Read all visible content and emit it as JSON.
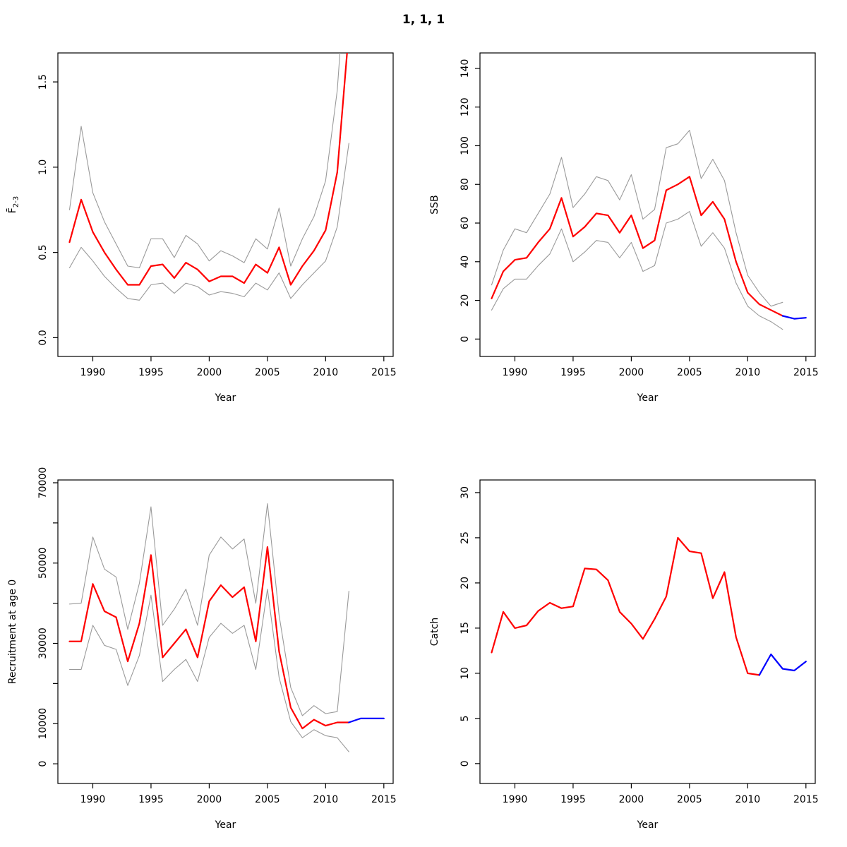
{
  "title": "1, 1, 1",
  "colors": {
    "estimate": "#ff0000",
    "forecast": "#0000ff",
    "band": "#9a9a9a",
    "axis": "#000000",
    "background": "#ffffff"
  },
  "chart_data": [
    {
      "type": "line",
      "name": "fbar",
      "title": "",
      "xlabel": "Year",
      "ylabel": "F̄",
      "ylabel_sub": "2-3",
      "xlim": [
        1987.0,
        2015.8
      ],
      "ylim": [
        -0.11,
        1.67
      ],
      "grid": false,
      "legend": "none",
      "xticks": [
        1990,
        1995,
        2000,
        2005,
        2010,
        2015
      ],
      "xtick_labels": [
        "1990",
        "1995",
        "2000",
        "2005",
        "2010",
        "2015"
      ],
      "yticks": [
        0,
        0.5,
        1.0,
        1.5
      ],
      "ytick_labels": [
        "0.0",
        "0.5",
        "1.0",
        "1.5"
      ],
      "series": [
        {
          "name": "upper-ci",
          "color_key": "band",
          "width": 1.1,
          "x": [
            1988,
            1989,
            1990,
            1991,
            1992,
            1993,
            1994,
            1995,
            1996,
            1997,
            1998,
            1999,
            2000,
            2001,
            2002,
            2003,
            2004,
            2005,
            2006,
            2007,
            2008,
            2009,
            2010,
            2011,
            2012
          ],
          "y": [
            0.75,
            1.24,
            0.85,
            0.68,
            0.55,
            0.42,
            0.41,
            0.58,
            0.58,
            0.47,
            0.6,
            0.55,
            0.45,
            0.51,
            0.48,
            0.44,
            0.58,
            0.52,
            0.76,
            0.42,
            0.58,
            0.71,
            0.92,
            1.45,
            2.4
          ]
        },
        {
          "name": "lower-ci",
          "color_key": "band",
          "width": 1.1,
          "x": [
            1988,
            1989,
            1990,
            1991,
            1992,
            1993,
            1994,
            1995,
            1996,
            1997,
            1998,
            1999,
            2000,
            2001,
            2002,
            2003,
            2004,
            2005,
            2006,
            2007,
            2008,
            2009,
            2010,
            2011,
            2012
          ],
          "y": [
            0.41,
            0.53,
            0.45,
            0.36,
            0.29,
            0.23,
            0.22,
            0.31,
            0.32,
            0.26,
            0.32,
            0.3,
            0.25,
            0.27,
            0.26,
            0.24,
            0.32,
            0.28,
            0.38,
            0.23,
            0.31,
            0.38,
            0.45,
            0.65,
            1.14
          ]
        },
        {
          "name": "estimate",
          "color_key": "estimate",
          "width": 2.2,
          "x": [
            1988,
            1989,
            1990,
            1991,
            1992,
            1993,
            1994,
            1995,
            1996,
            1997,
            1998,
            1999,
            2000,
            2001,
            2002,
            2003,
            2004,
            2005,
            2006,
            2007,
            2008,
            2009,
            2010,
            2011,
            2012
          ],
          "y": [
            0.56,
            0.81,
            0.62,
            0.5,
            0.4,
            0.31,
            0.31,
            0.42,
            0.43,
            0.35,
            0.44,
            0.4,
            0.33,
            0.36,
            0.36,
            0.32,
            0.43,
            0.38,
            0.53,
            0.31,
            0.42,
            0.51,
            0.63,
            0.97,
            1.8
          ]
        }
      ]
    },
    {
      "type": "line",
      "name": "ssb",
      "title": "",
      "xlabel": "Year",
      "ylabel": "SSB",
      "xlim": [
        1987.0,
        2015.8
      ],
      "ylim": [
        -9,
        148
      ],
      "grid": false,
      "legend": "none",
      "xticks": [
        1990,
        1995,
        2000,
        2005,
        2010,
        2015
      ],
      "xtick_labels": [
        "1990",
        "1995",
        "2000",
        "2005",
        "2010",
        "2015"
      ],
      "yticks": [
        0,
        20,
        40,
        60,
        80,
        100,
        120,
        140
      ],
      "ytick_labels": [
        "0",
        "20",
        "40",
        "60",
        "80",
        "100",
        "120",
        "140"
      ],
      "series": [
        {
          "name": "upper-ci",
          "color_key": "band",
          "width": 1.1,
          "x": [
            1988,
            1989,
            1990,
            1991,
            1992,
            1993,
            1994,
            1995,
            1996,
            1997,
            1998,
            1999,
            2000,
            2001,
            2002,
            2003,
            2004,
            2005,
            2006,
            2007,
            2008,
            2009,
            2010,
            2011,
            2012,
            2013
          ],
          "y": [
            28,
            46,
            57,
            55,
            65,
            75,
            94,
            68,
            75,
            84,
            82,
            72,
            85,
            62,
            67,
            99,
            101,
            108,
            83,
            93,
            82,
            55,
            33,
            24,
            17,
            19
          ]
        },
        {
          "name": "lower-ci",
          "color_key": "band",
          "width": 1.1,
          "x": [
            1988,
            1989,
            1990,
            1991,
            1992,
            1993,
            1994,
            1995,
            1996,
            1997,
            1998,
            1999,
            2000,
            2001,
            2002,
            2003,
            2004,
            2005,
            2006,
            2007,
            2008,
            2009,
            2010,
            2011,
            2012,
            2013
          ],
          "y": [
            15,
            26,
            31,
            31,
            38,
            44,
            57,
            40,
            45,
            51,
            50,
            42,
            50,
            35,
            38,
            60,
            62,
            66,
            48,
            55,
            47,
            29,
            17,
            12,
            9,
            5
          ]
        },
        {
          "name": "estimate",
          "color_key": "estimate",
          "width": 2.2,
          "x": [
            1988,
            1989,
            1990,
            1991,
            1992,
            1993,
            1994,
            1995,
            1996,
            1997,
            1998,
            1999,
            2000,
            2001,
            2002,
            2003,
            2004,
            2005,
            2006,
            2007,
            2008,
            2009,
            2010,
            2011,
            2012,
            2013
          ],
          "y": [
            21,
            35,
            41,
            42,
            50,
            57,
            73,
            53,
            58,
            65,
            64,
            55,
            64,
            47,
            51,
            77,
            80,
            84,
            64,
            71,
            62,
            40,
            24,
            18,
            15,
            12
          ]
        },
        {
          "name": "forecast",
          "color_key": "forecast",
          "width": 2.2,
          "x": [
            2013,
            2014,
            2015
          ],
          "y": [
            12,
            10.5,
            11
          ]
        }
      ]
    },
    {
      "type": "line",
      "name": "recruitment",
      "title": "",
      "xlabel": "Year",
      "ylabel": "Recruitment at age 0",
      "xlim": [
        1987.0,
        2015.8
      ],
      "ylim": [
        -4900,
        70700
      ],
      "grid": false,
      "legend": "none",
      "xticks": [
        1990,
        1995,
        2000,
        2005,
        2010,
        2015
      ],
      "xtick_labels": [
        "1990",
        "1995",
        "2000",
        "2005",
        "2010",
        "2015"
      ],
      "yticks": [
        0,
        10000,
        20000,
        30000,
        40000,
        50000,
        60000,
        70000
      ],
      "ytick_labels": [
        "0",
        "10000",
        "",
        "30000",
        "",
        "50000",
        "",
        "70000"
      ],
      "series": [
        {
          "name": "upper-ci",
          "color_key": "band",
          "width": 1.1,
          "x": [
            1988,
            1989,
            1990,
            1991,
            1992,
            1993,
            1994,
            1995,
            1996,
            1997,
            1998,
            1999,
            2000,
            2001,
            2002,
            2003,
            2004,
            2005,
            2006,
            2007,
            2008,
            2009,
            2010,
            2011,
            2012
          ],
          "y": [
            39800,
            40000,
            56500,
            48500,
            46500,
            33500,
            45000,
            64000,
            34500,
            38500,
            43500,
            34500,
            52000,
            56500,
            53500,
            56000,
            40000,
            64800,
            37000,
            19000,
            12000,
            14500,
            12500,
            13000,
            43000
          ]
        },
        {
          "name": "lower-ci",
          "color_key": "band",
          "width": 1.1,
          "x": [
            1988,
            1989,
            1990,
            1991,
            1992,
            1993,
            1994,
            1995,
            1996,
            1997,
            1998,
            1999,
            2000,
            2001,
            2002,
            2003,
            2004,
            2005,
            2006,
            2007,
            2008,
            2009,
            2010,
            2011,
            2012
          ],
          "y": [
            23500,
            23500,
            34500,
            29500,
            28500,
            19500,
            27000,
            42000,
            20500,
            23500,
            26000,
            20500,
            31500,
            35000,
            32500,
            34500,
            23500,
            43500,
            21500,
            10500,
            6500,
            8500,
            7000,
            6500,
            3000
          ]
        },
        {
          "name": "estimate",
          "color_key": "estimate",
          "width": 2.2,
          "x": [
            1988,
            1989,
            1990,
            1991,
            1992,
            1993,
            1994,
            1995,
            1996,
            1997,
            1998,
            1999,
            2000,
            2001,
            2002,
            2003,
            2004,
            2005,
            2006,
            2007,
            2008,
            2009,
            2010,
            2011,
            2012
          ],
          "y": [
            30500,
            30500,
            44800,
            38000,
            36500,
            25500,
            35000,
            52000,
            26500,
            30000,
            33500,
            26500,
            40500,
            44500,
            41500,
            44000,
            30500,
            54000,
            28000,
            14000,
            8800,
            11000,
            9500,
            10300,
            10300
          ]
        },
        {
          "name": "forecast",
          "color_key": "forecast",
          "width": 2.2,
          "x": [
            2012,
            2013,
            2014,
            2015
          ],
          "y": [
            10300,
            11300,
            11300,
            11300
          ]
        }
      ]
    },
    {
      "type": "line",
      "name": "catch",
      "title": "",
      "xlabel": "Year",
      "ylabel": "Catch",
      "xlim": [
        1987.0,
        2015.8
      ],
      "ylim": [
        -2.2,
        31.4
      ],
      "grid": false,
      "legend": "none",
      "xticks": [
        1990,
        1995,
        2000,
        2005,
        2010,
        2015
      ],
      "xtick_labels": [
        "1990",
        "1995",
        "2000",
        "2005",
        "2010",
        "2015"
      ],
      "yticks": [
        0,
        5,
        10,
        15,
        20,
        25,
        30
      ],
      "ytick_labels": [
        "0",
        "5",
        "10",
        "15",
        "20",
        "25",
        "30"
      ],
      "series": [
        {
          "name": "estimate",
          "color_key": "estimate",
          "width": 2.2,
          "x": [
            1988,
            1989,
            1990,
            1991,
            1992,
            1993,
            1994,
            1995,
            1996,
            1997,
            1998,
            1999,
            2000,
            2001,
            2002,
            2003,
            2004,
            2005,
            2006,
            2007,
            2008,
            2009,
            2010,
            2011
          ],
          "y": [
            12.3,
            16.8,
            15.0,
            15.3,
            16.9,
            17.8,
            17.2,
            17.4,
            21.6,
            21.5,
            20.3,
            16.8,
            15.5,
            13.8,
            16.0,
            18.5,
            25.0,
            23.5,
            23.3,
            18.3,
            21.2,
            14.0,
            10.0,
            9.8
          ]
        },
        {
          "name": "forecast",
          "color_key": "forecast",
          "width": 2.2,
          "x": [
            2011,
            2012,
            2013,
            2014,
            2015
          ],
          "y": [
            9.8,
            12.1,
            10.5,
            10.3,
            11.3
          ]
        }
      ]
    }
  ]
}
